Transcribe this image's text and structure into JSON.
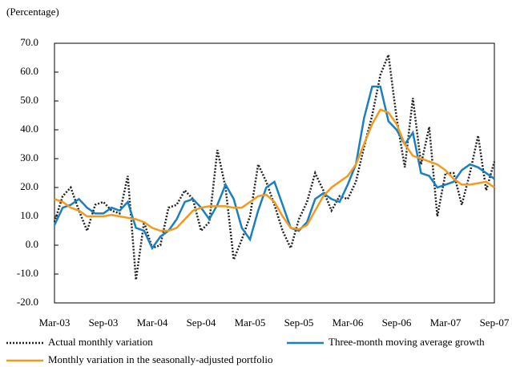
{
  "chart_data": {
    "type": "line",
    "y_label": "(Percentage)",
    "categories": [
      "Mar-03",
      null,
      null,
      null,
      null,
      null,
      "Sep-03",
      null,
      null,
      null,
      null,
      null,
      "Mar-04",
      null,
      null,
      null,
      null,
      null,
      "Sep-04",
      null,
      null,
      null,
      null,
      null,
      "Mar-05",
      null,
      null,
      null,
      null,
      null,
      "Sep-05",
      null,
      null,
      null,
      null,
      null,
      "Mar-06",
      null,
      null,
      null,
      null,
      null,
      "Sep-06",
      null,
      null,
      null,
      null,
      null,
      "Mar-07",
      null,
      null,
      null,
      null,
      null,
      "Sep-07"
    ],
    "series": [
      {
        "name": "Actual monthly variation",
        "color": "#222222",
        "line_style": "dotted",
        "values": [
          8,
          17,
          20,
          12,
          5,
          14,
          15,
          12,
          11,
          24,
          -12,
          8,
          -1,
          0,
          13,
          14,
          19,
          16,
          5,
          8,
          33,
          20,
          -5,
          2,
          10,
          28,
          22,
          14,
          5,
          -1,
          9,
          15,
          25,
          19,
          12,
          17,
          16,
          22,
          34,
          45,
          59,
          66,
          44,
          27,
          51,
          28,
          41,
          10,
          25,
          25,
          14,
          25,
          38,
          19,
          29
        ]
      },
      {
        "name": "Three-month moving average growth",
        "color": "#1a7fc1",
        "line_style": "solid",
        "values": [
          7,
          13,
          14,
          16,
          13,
          11,
          11,
          13,
          12,
          15,
          6,
          5,
          -1,
          3,
          5,
          9,
          15,
          16,
          13,
          9,
          14,
          21,
          16,
          6,
          2,
          12,
          20,
          22,
          14,
          6,
          5,
          8,
          16,
          18,
          16,
          15,
          21,
          28,
          44,
          55,
          55,
          43,
          40,
          35,
          39,
          25,
          24,
          20,
          21,
          22,
          26,
          28,
          27,
          25,
          23
        ]
      },
      {
        "name": "Monthly variation in the seasonally-adjusted portfolio",
        "color": "#f39a1e",
        "line_style": "solid",
        "values": [
          16,
          15,
          13,
          12,
          10,
          10,
          10,
          10.5,
          10,
          9.5,
          9,
          8,
          6,
          5,
          5,
          6,
          9,
          12,
          13,
          13.5,
          13.5,
          13.5,
          13,
          13,
          15,
          17,
          17.5,
          15,
          10,
          6,
          5.5,
          7,
          12,
          17,
          20,
          22,
          24,
          28,
          35,
          42,
          47,
          46,
          42,
          35,
          31,
          30,
          29,
          28,
          26,
          23,
          21,
          21,
          21.5,
          22,
          20
        ]
      }
    ],
    "ylim": [
      -20,
      70
    ],
    "yticks": [
      {
        "value": -20,
        "label": "-20.0"
      },
      {
        "value": -10,
        "label": "-10.0"
      },
      {
        "value": 0,
        "label": "0.0"
      },
      {
        "value": 10,
        "label": "10.0"
      },
      {
        "value": 20,
        "label": "20.0"
      },
      {
        "value": 30,
        "label": "30.0"
      },
      {
        "value": 40,
        "label": "40.0"
      },
      {
        "value": 50,
        "label": "50.0"
      },
      {
        "value": 60,
        "label": "60.0"
      },
      {
        "value": 70,
        "label": "70.0"
      }
    ],
    "grid": false,
    "legend": "bottom"
  }
}
